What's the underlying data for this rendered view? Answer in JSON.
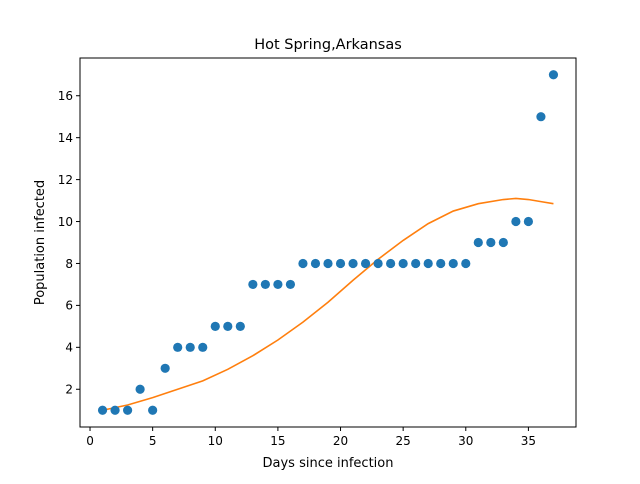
{
  "chart_data": {
    "type": "scatter",
    "title": "Hot Spring,Arkansas",
    "xlabel": "Days since infection",
    "ylabel": "Population infected",
    "xlim": [
      -0.8,
      38.8
    ],
    "ylim": [
      0.2,
      17.8
    ],
    "x_ticks": [
      0,
      5,
      10,
      15,
      20,
      25,
      30,
      35
    ],
    "y_ticks": [
      2,
      4,
      6,
      8,
      10,
      12,
      14,
      16
    ],
    "grid": false,
    "legend": "none",
    "series": [
      {
        "kind": "scatter",
        "color": "#1f77b4",
        "x": [
          1,
          2,
          3,
          4,
          5,
          6,
          7,
          8,
          9,
          10,
          11,
          12,
          13,
          14,
          15,
          16,
          17,
          18,
          19,
          20,
          21,
          22,
          23,
          24,
          25,
          26,
          27,
          28,
          29,
          30,
          31,
          32,
          33,
          34,
          35,
          36,
          37
        ],
        "y": [
          1,
          1,
          1,
          2,
          1,
          3,
          4,
          4,
          4,
          5,
          5,
          5,
          7,
          7,
          7,
          7,
          8,
          8,
          8,
          8,
          8,
          8,
          8,
          8,
          8,
          8,
          8,
          8,
          8,
          8,
          9,
          9,
          9,
          10,
          10,
          15,
          17
        ]
      },
      {
        "kind": "line",
        "color": "#ff7f0e",
        "x": [
          1,
          3,
          5,
          7,
          9,
          11,
          13,
          15,
          17,
          19,
          21,
          23,
          25,
          27,
          29,
          31,
          33,
          34,
          35,
          36,
          37
        ],
        "y": [
          1.0,
          1.25,
          1.6,
          2.0,
          2.4,
          2.95,
          3.6,
          4.35,
          5.2,
          6.15,
          7.2,
          8.2,
          9.1,
          9.9,
          10.5,
          10.85,
          11.05,
          11.1,
          11.05,
          10.95,
          10.85
        ]
      }
    ]
  }
}
